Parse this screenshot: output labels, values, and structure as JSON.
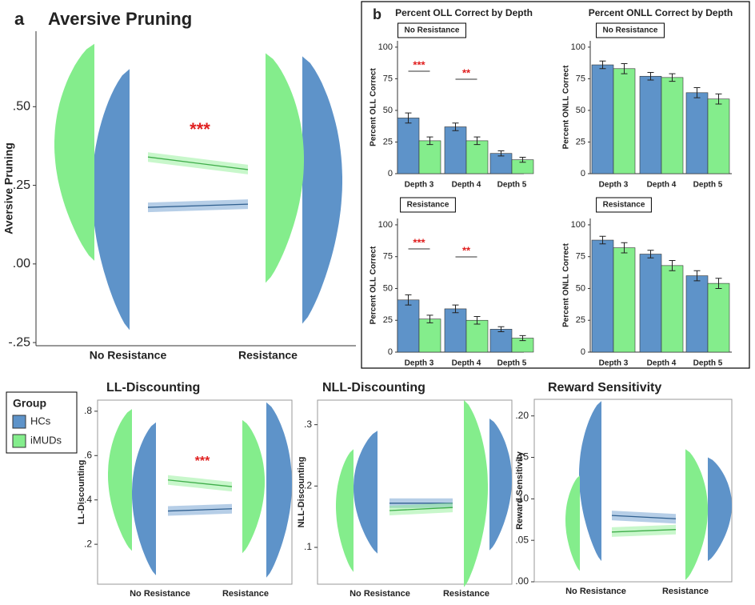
{
  "panel_labels": [
    "a",
    "b"
  ],
  "legend_title": "Group",
  "chart_data": [
    {
      "type": "raincloud",
      "title": "Aversive Pruning",
      "y_label": "Aversive Pruning",
      "categories": [
        "No Resistance",
        "Resistance"
      ],
      "series": [
        {
          "name": "HCs",
          "color": "#5e93c9",
          "values": [
            0.18,
            0.19
          ],
          "ranges": [
            [
              -0.21,
              0.62
            ],
            [
              -0.19,
              0.66
            ]
          ]
        },
        {
          "name": "iMUDs",
          "color": "#84ed8c",
          "values": [
            0.34,
            0.3
          ],
          "ranges": [
            [
              0.01,
              0.7
            ],
            [
              -0.06,
              0.67
            ]
          ]
        }
      ],
      "annotation": "***",
      "ylim": [
        -0.26,
        0.74
      ],
      "yticks": [
        {
          "value": -0.25,
          "label": "-.25"
        },
        {
          "value": 0,
          "label": ".00"
        },
        {
          "value": 0.25,
          "label": ".25"
        },
        {
          "value": 0.5,
          "label": ".50"
        }
      ]
    },
    {
      "type": "bar",
      "title": "Percent OLL Correct by Depth",
      "panel_label": "No Resistance",
      "y_label": "Percent OLL Correct",
      "categories": [
        "Depth 3",
        "Depth 4",
        "Depth 5"
      ],
      "series": [
        {
          "name": "HCs",
          "color": "#5e93c9",
          "values": [
            44,
            37,
            16
          ],
          "errors": [
            4,
            3,
            2
          ]
        },
        {
          "name": "iMUDs",
          "color": "#84ed8c",
          "values": [
            26,
            26,
            11
          ],
          "errors": [
            3,
            3,
            2
          ]
        }
      ],
      "annotations": [
        "***",
        "**"
      ],
      "ylim": [
        0,
        105
      ],
      "yticks": [
        0,
        25,
        50,
        75,
        100
      ]
    },
    {
      "type": "bar",
      "title": "Percent ONLL Correct by Depth",
      "panel_label": "No Resistance",
      "y_label": "Percent ONLL Correct",
      "categories": [
        "Depth 3",
        "Depth 4",
        "Depth 5"
      ],
      "series": [
        {
          "name": "HCs",
          "color": "#5e93c9",
          "values": [
            86,
            77,
            64
          ],
          "errors": [
            3,
            3,
            4
          ]
        },
        {
          "name": "iMUDs",
          "color": "#84ed8c",
          "values": [
            83,
            76,
            59
          ],
          "errors": [
            4,
            3,
            4
          ]
        }
      ],
      "ylim": [
        0,
        105
      ],
      "yticks": [
        0,
        25,
        50,
        75,
        100
      ]
    },
    {
      "type": "bar",
      "panel_label": "Resistance",
      "y_label": "Percent OLL Correct",
      "categories": [
        "Depth 3",
        "Depth 4",
        "Depth 5"
      ],
      "series": [
        {
          "name": "HCs",
          "color": "#5e93c9",
          "values": [
            41,
            34,
            18
          ],
          "errors": [
            4,
            3,
            2
          ]
        },
        {
          "name": "iMUDs",
          "color": "#84ed8c",
          "values": [
            26,
            25,
            11
          ],
          "errors": [
            3,
            3,
            2
          ]
        }
      ],
      "annotations": [
        "***",
        "**"
      ],
      "ylim": [
        0,
        105
      ],
      "yticks": [
        0,
        25,
        50,
        75,
        100
      ]
    },
    {
      "type": "bar",
      "panel_label": "Resistance",
      "y_label": "Percent ONLL Correct",
      "categories": [
        "Depth 3",
        "Depth 4",
        "Depth 5"
      ],
      "series": [
        {
          "name": "HCs",
          "color": "#5e93c9",
          "values": [
            88,
            77,
            60
          ],
          "errors": [
            3,
            3,
            4
          ]
        },
        {
          "name": "iMUDs",
          "color": "#84ed8c",
          "values": [
            82,
            68,
            54
          ],
          "errors": [
            4,
            4,
            4
          ]
        }
      ],
      "ylim": [
        0,
        105
      ],
      "yticks": [
        0,
        25,
        50,
        75,
        100
      ]
    },
    {
      "type": "raincloud",
      "title": "LL-Discounting",
      "y_label": "LL-Discounting",
      "categories": [
        "No Resistance",
        "Resistance"
      ],
      "series": [
        {
          "name": "HCs",
          "color": "#5e93c9",
          "values": [
            0.35,
            0.36
          ],
          "ranges": [
            [
              0.06,
              0.75
            ],
            [
              0.05,
              0.84
            ]
          ]
        },
        {
          "name": "iMUDs",
          "color": "#84ed8c",
          "values": [
            0.49,
            0.46
          ],
          "ranges": [
            [
              0.17,
              0.81
            ],
            [
              0.16,
              0.76
            ]
          ]
        }
      ],
      "annotation": "***",
      "ylim": [
        0.02,
        0.85
      ],
      "yticks": [
        {
          "value": 0.2,
          "label": ".2"
        },
        {
          "value": 0.4,
          "label": ".4"
        },
        {
          "value": 0.6,
          "label": ".6"
        },
        {
          "value": 0.8,
          "label": ".8"
        }
      ]
    },
    {
      "type": "raincloud",
      "title": "NLL-Discounting",
      "y_label": "NLL-Discounting",
      "categories": [
        "No Resistance",
        "Resistance"
      ],
      "series": [
        {
          "name": "HCs",
          "color": "#5e93c9",
          "values": [
            0.172,
            0.172
          ],
          "ranges": [
            [
              0.09,
              0.29
            ],
            [
              0.095,
              0.31
            ]
          ]
        },
        {
          "name": "iMUDs",
          "color": "#84ed8c",
          "values": [
            0.16,
            0.165
          ],
          "ranges": [
            [
              0.06,
              0.26
            ],
            [
              0.035,
              0.34
            ]
          ]
        }
      ],
      "ylim": [
        0.04,
        0.34
      ],
      "yticks": [
        {
          "value": 0.1,
          "label": ".1"
        },
        {
          "value": 0.2,
          "label": ".2"
        },
        {
          "value": 0.3,
          "label": ".3"
        }
      ]
    },
    {
      "type": "raincloud",
      "title": "Reward Sensitivity",
      "y_label": "Reward Sensitivity",
      "categories": [
        "No Resistance",
        "Resistance"
      ],
      "series": [
        {
          "name": "HCs",
          "color": "#5e93c9",
          "values": [
            0.08,
            0.076
          ],
          "ranges": [
            [
              0.025,
              0.218
            ],
            [
              0.025,
              0.15
            ]
          ]
        },
        {
          "name": "iMUDs",
          "color": "#84ed8c",
          "values": [
            0.06,
            0.063
          ],
          "ranges": [
            [
              0.013,
              0.128
            ],
            [
              0.002,
              0.16
            ]
          ]
        }
      ],
      "ylim": [
        0,
        0.22
      ],
      "yticks": [
        {
          "value": 0,
          "label": ".00"
        },
        {
          "value": 0.05,
          "label": ".05"
        },
        {
          "value": 0.1,
          "label": ".10"
        },
        {
          "value": 0.15,
          "label": ".15"
        },
        {
          "value": 0.2,
          "label": ".20"
        }
      ]
    }
  ]
}
